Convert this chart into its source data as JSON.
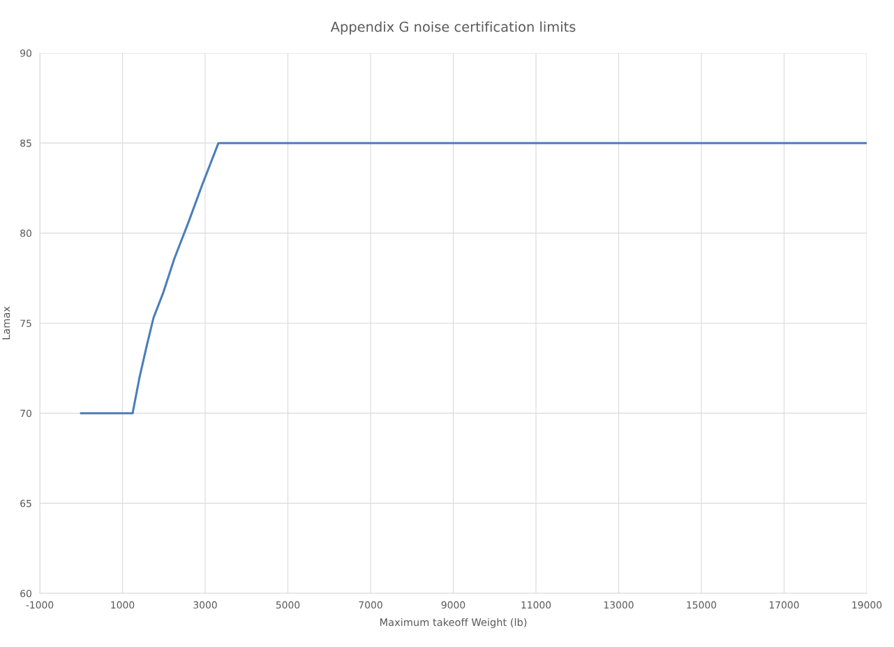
{
  "chart_data": {
    "type": "line",
    "title": "Appendix G noise certification limits",
    "xlabel": "Maximum takeoff Weight (lb)",
    "ylabel": "Lamax",
    "x": [
      0,
      1245,
      1413,
      1582,
      1751,
      1987,
      2257,
      2595,
      2932,
      3101,
      3321,
      19000
    ],
    "series": [
      {
        "color": "#4a7ebb",
        "values": [
          70,
          70,
          72,
          73.7,
          75.3,
          76.7,
          78.6,
          80.6,
          82.7,
          83.7,
          85,
          85
        ]
      }
    ],
    "xlim": [
      -1000,
      19000
    ],
    "xticks": [
      -1000,
      1000,
      3000,
      5000,
      7000,
      9000,
      11000,
      13000,
      15000,
      17000,
      19000
    ],
    "ylim": [
      60,
      90
    ],
    "yticks": [
      60,
      65,
      70,
      75,
      80,
      85,
      90
    ],
    "grid": true,
    "legend": false,
    "marker": "none",
    "line_style": "solid"
  }
}
